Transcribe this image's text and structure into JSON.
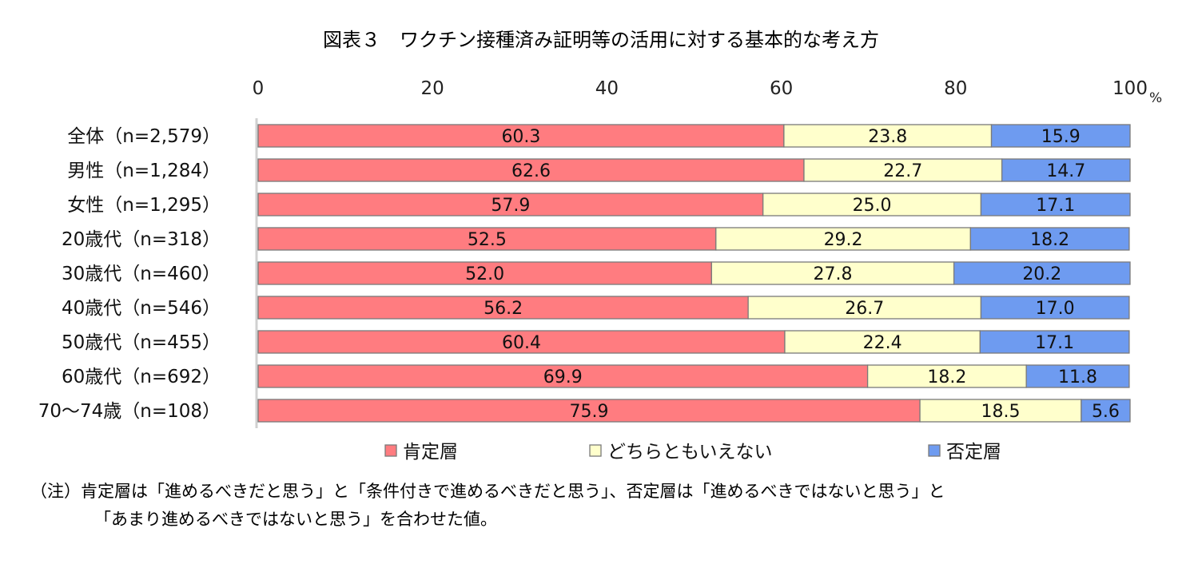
{
  "title": "図表３　ワクチン接種済み証明等の活用に対する基本的な考え方",
  "chart_data": {
    "type": "bar",
    "orientation": "horizontal",
    "stacked": true,
    "axis_ticks": [
      "0",
      "20",
      "40",
      "60",
      "80",
      "100"
    ],
    "axis_unit": "%",
    "xlim": [
      0,
      100
    ],
    "legend_position": "bottom",
    "categories": [
      "全体（n=2,579）",
      "男性（n=1,284）",
      "女性（n=1,295）",
      "20歳代（n=318）",
      "30歳代（n=460）",
      "40歳代（n=546）",
      "50歳代（n=455）",
      "60歳代（n=692）",
      "70～74歳（n=108）"
    ],
    "series": [
      {
        "name": "肯定層",
        "color": "#ff7c80",
        "values": [
          60.3,
          62.6,
          57.9,
          52.5,
          52.0,
          56.2,
          60.4,
          69.9,
          75.9
        ]
      },
      {
        "name": "どちらともいえない",
        "color": "#ffffcc",
        "values": [
          23.8,
          22.7,
          25.0,
          29.2,
          27.8,
          26.7,
          22.4,
          18.2,
          18.5
        ]
      },
      {
        "name": "否定層",
        "color": "#6e9bf0",
        "values": [
          15.9,
          14.7,
          17.1,
          18.2,
          20.2,
          17.0,
          17.1,
          11.8,
          5.6
        ]
      }
    ]
  },
  "note": {
    "line1": "（注）肯定層は「進めるべきだと思う」と「条件付きで進めるべきだと思う」、否定層は「進めるべきではないと思う」と",
    "line2": "「あまり進めるべきではないと思う」を合わせた値。"
  }
}
